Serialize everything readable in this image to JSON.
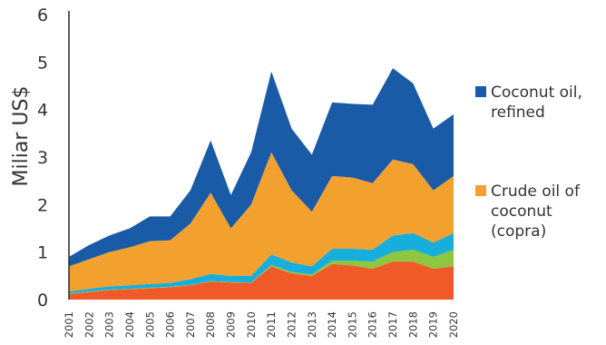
{
  "chart_data": {
    "type": "area",
    "stacked": true,
    "ylabel": "Miliar US$",
    "ylim": [
      0,
      6
    ],
    "yticks": [
      "0",
      "1",
      "2",
      "3",
      "4",
      "5",
      "6"
    ],
    "categories": [
      "2001",
      "2002",
      "2003",
      "2004",
      "2005",
      "2006",
      "2007",
      "2008",
      "2009",
      "2010",
      "2011",
      "2012",
      "2013",
      "2014",
      "2015",
      "2016",
      "2017",
      "2018",
      "2019",
      "2020"
    ],
    "series": [
      {
        "key": "s1",
        "color": "#f05a28",
        "values": [
          0.12,
          0.16,
          0.2,
          0.22,
          0.24,
          0.26,
          0.3,
          0.38,
          0.36,
          0.35,
          0.7,
          0.55,
          0.5,
          0.75,
          0.72,
          0.65,
          0.8,
          0.8,
          0.65,
          0.7
        ]
      },
      {
        "key": "s2",
        "color": "#8dc63f",
        "values": [
          0.01,
          0.01,
          0.01,
          0.01,
          0.01,
          0.01,
          0.01,
          0.01,
          0.01,
          0.01,
          0.03,
          0.03,
          0.03,
          0.07,
          0.1,
          0.15,
          0.2,
          0.25,
          0.25,
          0.35
        ]
      },
      {
        "key": "s3",
        "color": "#17aedc",
        "values": [
          0.04,
          0.06,
          0.07,
          0.07,
          0.08,
          0.08,
          0.12,
          0.15,
          0.13,
          0.14,
          0.22,
          0.2,
          0.17,
          0.25,
          0.25,
          0.25,
          0.35,
          0.35,
          0.3,
          0.35
        ]
      },
      {
        "key": "s4",
        "name": "Crude oil of coconut (copra)",
        "color": "#f3a12e",
        "values": [
          0.53,
          0.62,
          0.72,
          0.8,
          0.9,
          0.9,
          1.17,
          1.71,
          1.0,
          1.5,
          2.15,
          1.52,
          1.15,
          1.53,
          1.5,
          1.4,
          1.6,
          1.45,
          1.1,
          1.2
        ]
      },
      {
        "key": "s5",
        "name": "Coconut oil, refined",
        "color": "#1a5ba8",
        "values": [
          0.2,
          0.3,
          0.35,
          0.4,
          0.52,
          0.5,
          0.7,
          1.1,
          0.7,
          1.1,
          1.7,
          1.3,
          1.2,
          1.55,
          1.55,
          1.65,
          1.92,
          1.7,
          1.3,
          1.3
        ]
      }
    ],
    "legend": [
      {
        "series": "s5",
        "lines": [
          "Coconut oil,",
          "refined"
        ]
      },
      {
        "series": "s4",
        "lines": [
          "Crude oil of",
          "coconut",
          "(copra)"
        ]
      }
    ],
    "legend_position": "right",
    "grid": false
  }
}
